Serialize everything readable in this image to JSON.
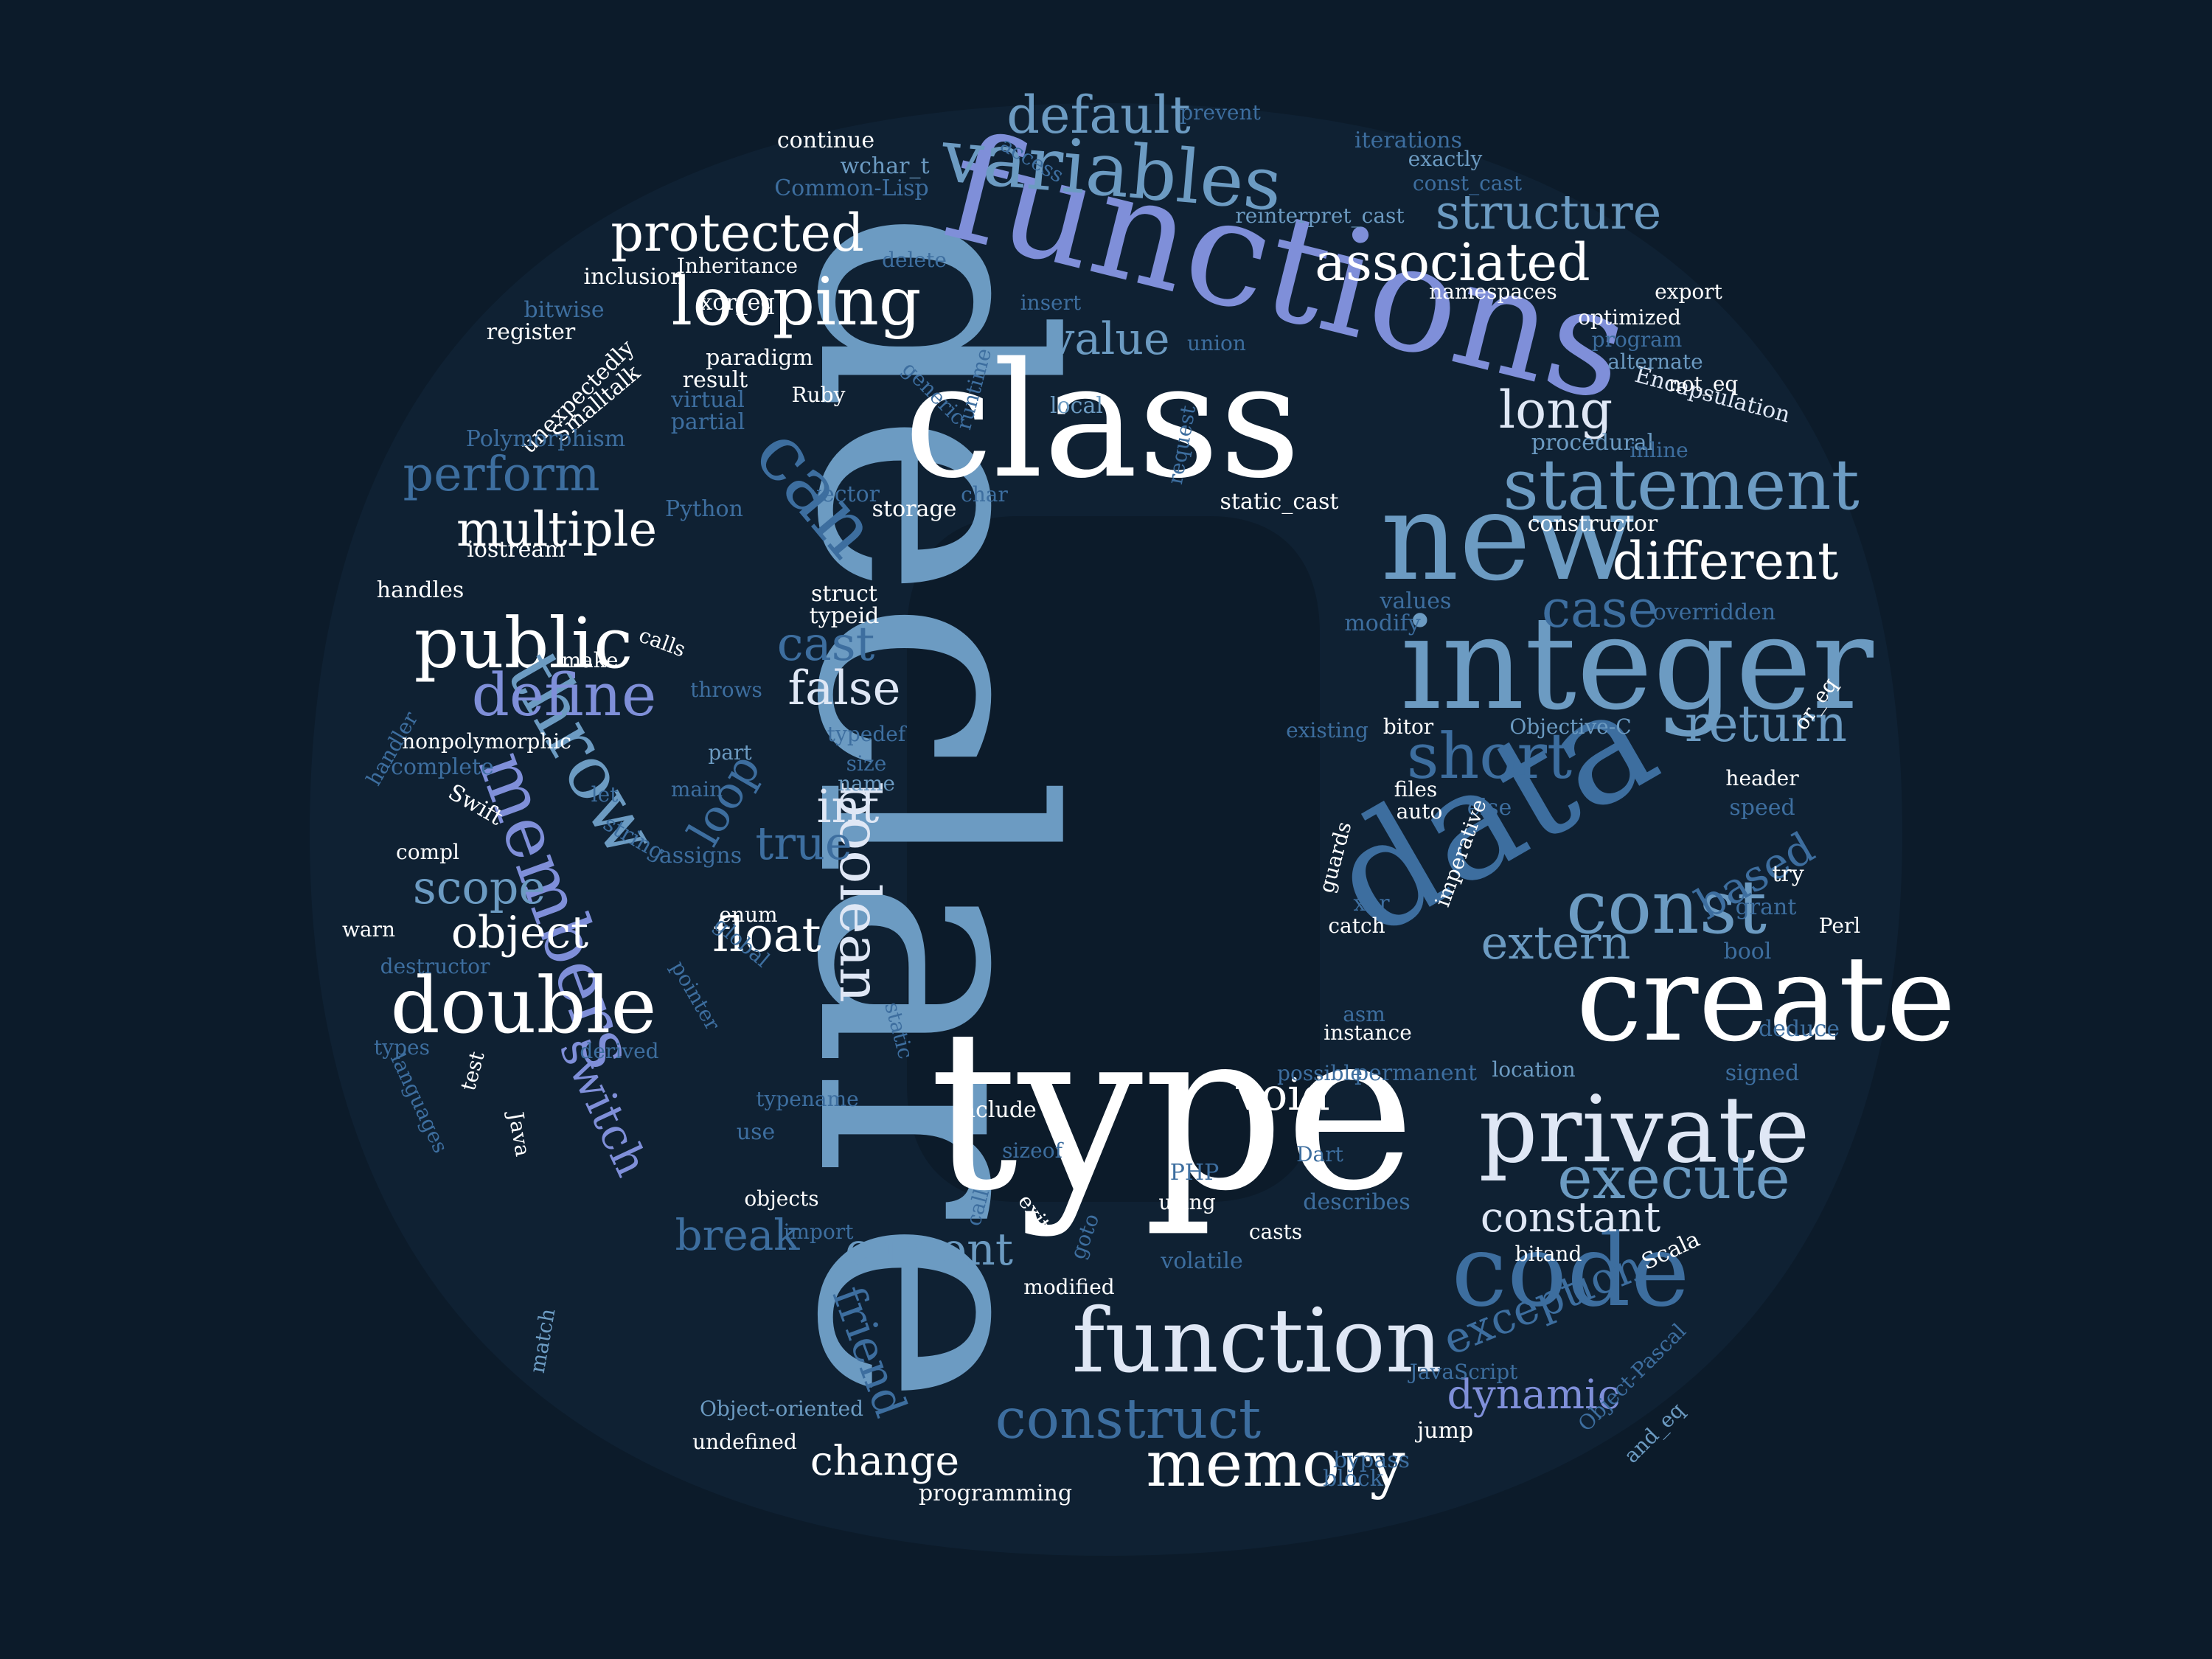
{
  "palette": {
    "background": "#0c1b2a",
    "shape": "#0f2133",
    "hole": "#0c1b2a",
    "white": "#ffffff",
    "ice": "#dfe7f5",
    "periwinkle": "#7f8fd9",
    "steel": "#6c9bc2",
    "blue": "#3d6e9f",
    "navy": "#37598a"
  },
  "words": [
    {
      "text": "declare",
      "c": "steel"
    },
    {
      "text": "type",
      "c": "white"
    },
    {
      "text": "functions",
      "c": "periwinkle"
    },
    {
      "text": "class",
      "c": "white"
    },
    {
      "text": "data",
      "c": "blue"
    },
    {
      "text": "create",
      "c": "white"
    },
    {
      "text": "integer",
      "c": "steel"
    },
    {
      "text": "members",
      "c": "periwinkle"
    },
    {
      "text": "function",
      "c": "ice"
    },
    {
      "text": "new",
      "c": "steel"
    },
    {
      "text": "private",
      "c": "ice"
    },
    {
      "text": "code",
      "c": "blue"
    },
    {
      "text": "variables",
      "c": "steel"
    },
    {
      "text": "statement",
      "c": "steel"
    },
    {
      "text": "memory",
      "c": "white"
    },
    {
      "text": "public",
      "c": "white"
    },
    {
      "text": "double",
      "c": "white"
    },
    {
      "text": "boolean",
      "c": "ice"
    },
    {
      "text": "throw",
      "c": "steel"
    },
    {
      "text": "looping",
      "c": "white"
    },
    {
      "text": "execute",
      "c": "steel"
    },
    {
      "text": "construct",
      "c": "blue"
    },
    {
      "text": "can",
      "c": "blue"
    },
    {
      "text": "define",
      "c": "periwinkle"
    },
    {
      "text": "const",
      "c": "steel"
    },
    {
      "text": "short",
      "c": "blue"
    },
    {
      "text": "default",
      "c": "steel"
    },
    {
      "text": "protected",
      "c": "white"
    },
    {
      "text": "associated",
      "c": "white"
    },
    {
      "text": "structure",
      "c": "steel"
    },
    {
      "text": "long",
      "c": "ice"
    },
    {
      "text": "different",
      "c": "white"
    },
    {
      "text": "case",
      "c": "blue"
    },
    {
      "text": "return",
      "c": "steel"
    },
    {
      "text": "multiple",
      "c": "white"
    },
    {
      "text": "perform",
      "c": "blue"
    },
    {
      "text": "value",
      "c": "steel"
    },
    {
      "text": "false",
      "c": "ice"
    },
    {
      "text": "cast",
      "c": "blue"
    },
    {
      "text": "scope",
      "c": "steel"
    },
    {
      "text": "object",
      "c": "white"
    },
    {
      "text": "float",
      "c": "white"
    },
    {
      "text": "int",
      "c": "ice"
    },
    {
      "text": "true",
      "c": "blue"
    },
    {
      "text": "loop",
      "c": "blue"
    },
    {
      "text": "switch",
      "c": "periwinkle"
    },
    {
      "text": "extern",
      "c": "steel"
    },
    {
      "text": "based",
      "c": "blue"
    },
    {
      "text": "void",
      "c": "white"
    },
    {
      "text": "constant",
      "c": "ice"
    },
    {
      "text": "current",
      "c": "steel"
    },
    {
      "text": "break",
      "c": "blue"
    },
    {
      "text": "friend",
      "c": "blue"
    },
    {
      "text": "exception",
      "c": "blue"
    },
    {
      "text": "dynamic",
      "c": "periwinkle"
    },
    {
      "text": "change",
      "c": "white"
    },
    {
      "text": "Encapsulation",
      "c": "ice"
    },
    {
      "text": "Object-oriented",
      "c": "steel"
    },
    {
      "text": "Object-Pascal",
      "c": "blue"
    },
    {
      "text": "and_eq",
      "c": "steel"
    },
    {
      "text": "continue",
      "c": "white"
    },
    {
      "text": "wchar_t",
      "c": "steel"
    },
    {
      "text": "Common-Lisp",
      "c": "blue"
    },
    {
      "text": "access",
      "c": "blue"
    },
    {
      "text": "prevent",
      "c": "blue"
    },
    {
      "text": "iterations",
      "c": "blue"
    },
    {
      "text": "exactly",
      "c": "steel"
    },
    {
      "text": "const_cast",
      "c": "blue"
    },
    {
      "text": "reinterpret_cast",
      "c": "steel"
    },
    {
      "text": "inclusion",
      "c": "white"
    },
    {
      "text": "Inheritance",
      "c": "white"
    },
    {
      "text": "delete",
      "c": "blue"
    },
    {
      "text": "bitwise",
      "c": "blue"
    },
    {
      "text": "unexpectedly",
      "c": "white"
    },
    {
      "text": "register",
      "c": "white"
    },
    {
      "text": "xor_eq",
      "c": "white"
    },
    {
      "text": "insert",
      "c": "blue"
    },
    {
      "text": "namespaces",
      "c": "white"
    },
    {
      "text": "export",
      "c": "white"
    },
    {
      "text": "optimized",
      "c": "white"
    },
    {
      "text": "program",
      "c": "blue"
    },
    {
      "text": "alternate",
      "c": "steel"
    },
    {
      "text": "not_eq",
      "c": "white"
    },
    {
      "text": "Smalltalk",
      "c": "white"
    },
    {
      "text": "result",
      "c": "white"
    },
    {
      "text": "paradigm",
      "c": "white"
    },
    {
      "text": "virtual",
      "c": "blue"
    },
    {
      "text": "partial",
      "c": "blue"
    },
    {
      "text": "Ruby",
      "c": "white"
    },
    {
      "text": "generic",
      "c": "blue"
    },
    {
      "text": "runtime",
      "c": "blue"
    },
    {
      "text": "union",
      "c": "blue"
    },
    {
      "text": "local",
      "c": "steel"
    },
    {
      "text": "request",
      "c": "blue"
    },
    {
      "text": "procedural",
      "c": "steel"
    },
    {
      "text": "inline",
      "c": "blue"
    },
    {
      "text": "Polymorphism",
      "c": "blue"
    },
    {
      "text": "Python",
      "c": "blue"
    },
    {
      "text": "vector",
      "c": "blue"
    },
    {
      "text": "char",
      "c": "blue"
    },
    {
      "text": "storage",
      "c": "white"
    },
    {
      "text": "static_cast",
      "c": "white"
    },
    {
      "text": "constructor",
      "c": "white"
    },
    {
      "text": "iostream",
      "c": "white"
    },
    {
      "text": "handles",
      "c": "white"
    },
    {
      "text": "struct",
      "c": "white"
    },
    {
      "text": "typeid",
      "c": "white"
    },
    {
      "text": "values",
      "c": "blue"
    },
    {
      "text": "modify",
      "c": "blue"
    },
    {
      "text": "overridden",
      "c": "blue"
    },
    {
      "text": "or_eq",
      "c": "white"
    },
    {
      "text": "calls",
      "c": "white"
    },
    {
      "text": "make",
      "c": "white"
    },
    {
      "text": "throws",
      "c": "blue"
    },
    {
      "text": "handler",
      "c": "blue"
    },
    {
      "text": "nonpolymorphic",
      "c": "white"
    },
    {
      "text": "complete",
      "c": "blue"
    },
    {
      "text": "part",
      "c": "steel"
    },
    {
      "text": "typedef",
      "c": "blue"
    },
    {
      "text": "size",
      "c": "blue"
    },
    {
      "text": "name",
      "c": "steel"
    },
    {
      "text": "files",
      "c": "white"
    },
    {
      "text": "main",
      "c": "blue"
    },
    {
      "text": "let",
      "c": "blue"
    },
    {
      "text": "existing",
      "c": "blue"
    },
    {
      "text": "bitor",
      "c": "white"
    },
    {
      "text": "Objective-C",
      "c": "steel"
    },
    {
      "text": "header",
      "c": "white"
    },
    {
      "text": "speed",
      "c": "blue"
    },
    {
      "text": "auto",
      "c": "white"
    },
    {
      "text": "else",
      "c": "blue"
    },
    {
      "text": "imperative",
      "c": "white"
    },
    {
      "text": "Swift",
      "c": "white"
    },
    {
      "text": "string",
      "c": "blue"
    },
    {
      "text": "assigns",
      "c": "blue"
    },
    {
      "text": "compl",
      "c": "white"
    },
    {
      "text": "try",
      "c": "white"
    },
    {
      "text": "guards",
      "c": "white"
    },
    {
      "text": "grant",
      "c": "blue"
    },
    {
      "text": "Perl",
      "c": "white"
    },
    {
      "text": "xor",
      "c": "blue"
    },
    {
      "text": "catch",
      "c": "white"
    },
    {
      "text": "warn",
      "c": "white"
    },
    {
      "text": "enum",
      "c": "white"
    },
    {
      "text": "global",
      "c": "blue"
    },
    {
      "text": "destructor",
      "c": "blue"
    },
    {
      "text": "bool",
      "c": "blue"
    },
    {
      "text": "pointer",
      "c": "blue"
    },
    {
      "text": "static",
      "c": "blue"
    },
    {
      "text": "asm",
      "c": "blue"
    },
    {
      "text": "instance",
      "c": "white"
    },
    {
      "text": "deduce",
      "c": "blue"
    },
    {
      "text": "types",
      "c": "blue"
    },
    {
      "text": "derived",
      "c": "blue"
    },
    {
      "text": "test",
      "c": "white"
    },
    {
      "text": "possible",
      "c": "blue"
    },
    {
      "text": "permanent",
      "c": "blue"
    },
    {
      "text": "location",
      "c": "steel"
    },
    {
      "text": "signed",
      "c": "blue"
    },
    {
      "text": "typename",
      "c": "blue"
    },
    {
      "text": "languages",
      "c": "blue"
    },
    {
      "text": "Java",
      "c": "white"
    },
    {
      "text": "include",
      "c": "white"
    },
    {
      "text": "use",
      "c": "blue"
    },
    {
      "text": "sizeof",
      "c": "blue"
    },
    {
      "text": "call",
      "c": "blue"
    },
    {
      "text": "Dart",
      "c": "blue"
    },
    {
      "text": "PHP",
      "c": "blue"
    },
    {
      "text": "using",
      "c": "white"
    },
    {
      "text": "objects",
      "c": "white"
    },
    {
      "text": "describes",
      "c": "blue"
    },
    {
      "text": "exit",
      "c": "white"
    },
    {
      "text": "goto",
      "c": "blue"
    },
    {
      "text": "casts",
      "c": "white"
    },
    {
      "text": "import",
      "c": "blue"
    },
    {
      "text": "bitand",
      "c": "white"
    },
    {
      "text": "Scala",
      "c": "white"
    },
    {
      "text": "volatile",
      "c": "blue"
    },
    {
      "text": "modified",
      "c": "white"
    },
    {
      "text": "match",
      "c": "steel"
    },
    {
      "text": "JavaScript",
      "c": "blue"
    },
    {
      "text": "jump",
      "c": "white"
    },
    {
      "text": "undefined",
      "c": "white"
    },
    {
      "text": "bypass",
      "c": "blue"
    },
    {
      "text": "block",
      "c": "blue"
    },
    {
      "text": "programming",
      "c": "white"
    }
  ]
}
